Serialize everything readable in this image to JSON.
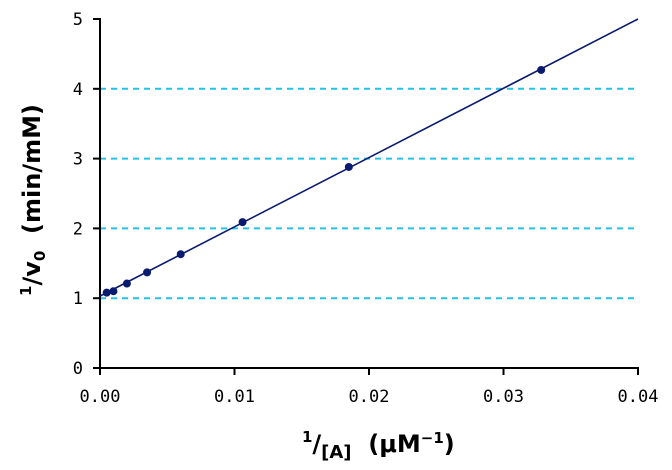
{
  "chart_data": {
    "type": "scatter",
    "title": "",
    "xlabel": {
      "sup": "1",
      "main": "/",
      "sub": "[A]",
      "unit_pre": "  (μM",
      "unit_sup": "−1",
      "unit_post": ")"
    },
    "ylabel": {
      "sup": "1",
      "main": "/v",
      "sub": "0",
      "unit": "  (min/mM)"
    },
    "xlim": [
      0,
      0.04
    ],
    "ylim": [
      0,
      5
    ],
    "x_ticks": [
      "0.00",
      "0.01",
      "0.02",
      "0.03",
      "0.04"
    ],
    "y_ticks": [
      "0",
      "1",
      "2",
      "3",
      "4",
      "5"
    ],
    "gridlines_y": [
      1,
      2,
      3,
      4
    ],
    "grid_color": "#22c3e6",
    "marker_color": "#0a1a6e",
    "line_color": "#0a1a6e",
    "points": [
      {
        "x": 0.0005,
        "y": 1.08
      },
      {
        "x": 0.001,
        "y": 1.1
      },
      {
        "x": 0.002,
        "y": 1.21
      },
      {
        "x": 0.0035,
        "y": 1.37
      },
      {
        "x": 0.006,
        "y": 1.63
      },
      {
        "x": 0.0106,
        "y": 2.09
      },
      {
        "x": 0.0185,
        "y": 2.88
      },
      {
        "x": 0.0328,
        "y": 4.27
      }
    ],
    "fit_line": {
      "x": [
        0,
        0.04
      ],
      "y": [
        1.03,
        5.0
      ]
    }
  }
}
